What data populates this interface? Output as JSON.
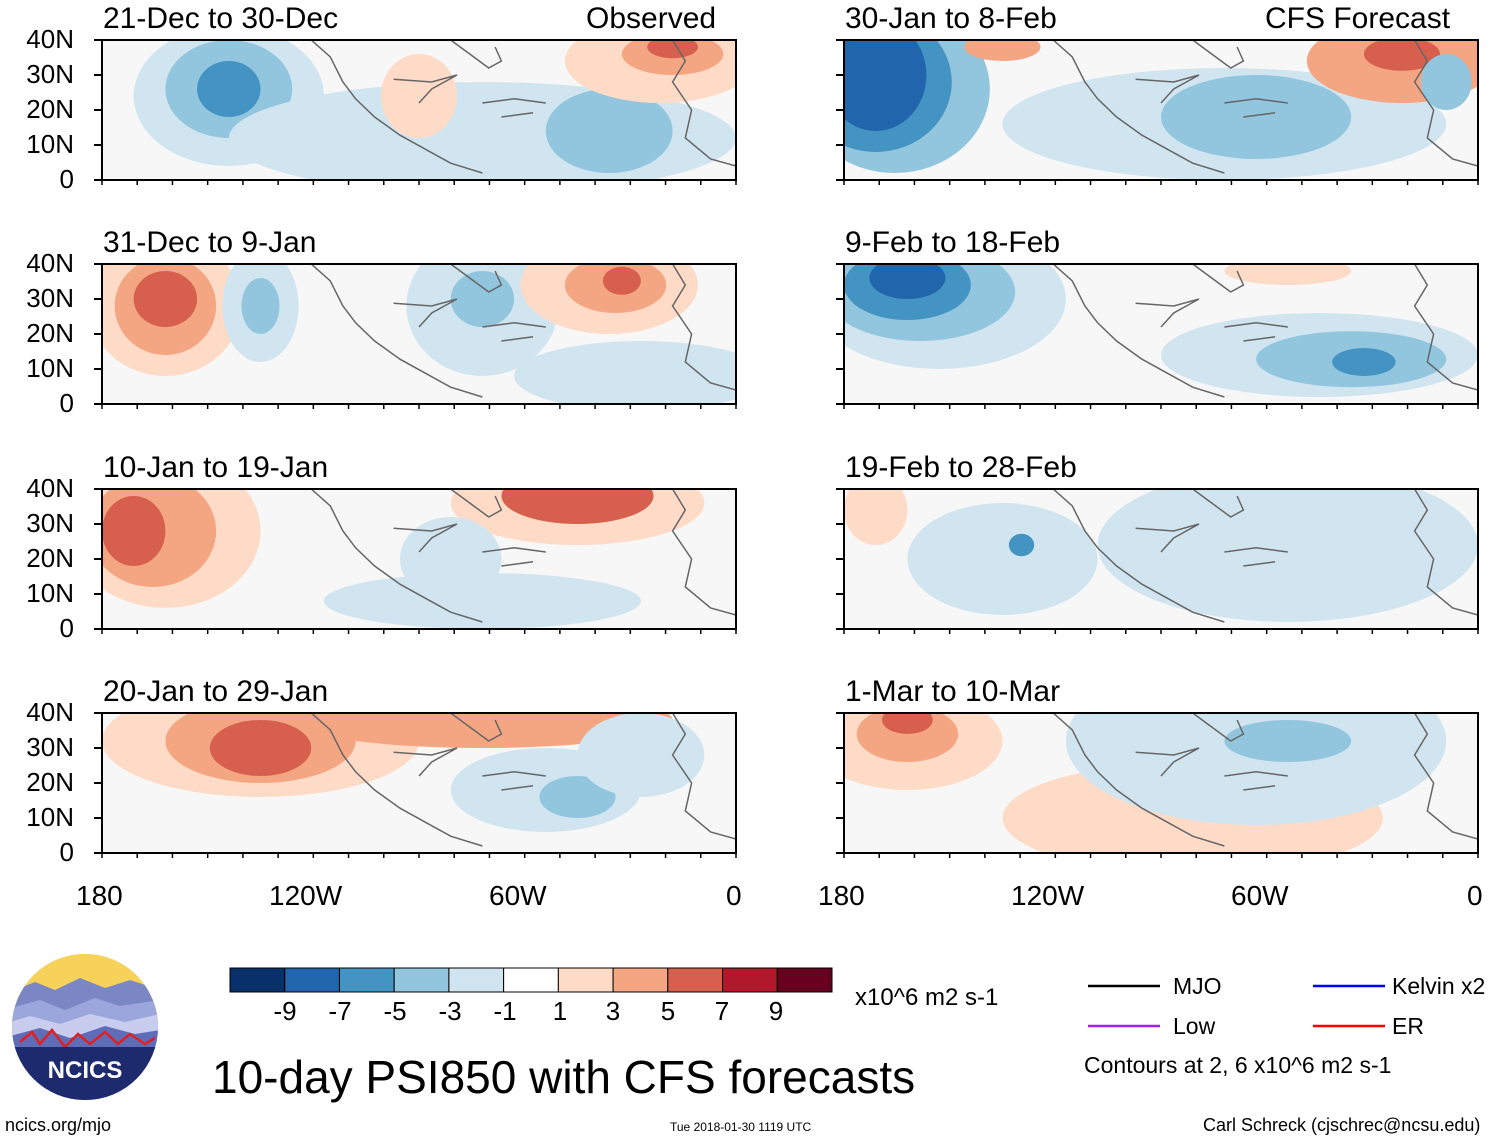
{
  "title": "10-day PSI850 with CFS forecasts",
  "footer": {
    "url": "ncics.org/mjo",
    "timestamp": "Tue 2018-01-30 1119 UTC",
    "credit": "Carl Schreck (cjschrec@ncsu.edu)"
  },
  "logo": {
    "text": "NCICS"
  },
  "left_column_label": "Observed",
  "right_column_label": "CFS Forecast",
  "lat_labels": [
    "40N",
    "30N",
    "20N",
    "10N",
    "0"
  ],
  "lon_labels": [
    "180",
    "120W",
    "60W",
    "0"
  ],
  "panels": [
    {
      "period": "21-Dec to 30-Dec",
      "column": "left",
      "row": 0
    },
    {
      "period": "31-Dec to 9-Jan",
      "column": "left",
      "row": 1
    },
    {
      "period": "10-Jan to 19-Jan",
      "column": "left",
      "row": 2
    },
    {
      "period": "20-Jan to 29-Jan",
      "column": "left",
      "row": 3
    },
    {
      "period": "30-Jan to 8-Feb",
      "column": "right",
      "row": 0
    },
    {
      "period": "9-Feb to 18-Feb",
      "column": "right",
      "row": 1
    },
    {
      "period": "19-Feb to 28-Feb",
      "column": "right",
      "row": 2
    },
    {
      "period": "1-Mar to 10-Mar",
      "column": "right",
      "row": 3
    }
  ],
  "colorbar": {
    "ticks": [
      "-9",
      "-7",
      "-5",
      "-3",
      "-1",
      "1",
      "3",
      "5",
      "7",
      "9"
    ],
    "colors": [
      "#08306b",
      "#2166ac",
      "#4393c3",
      "#92c5de",
      "#d1e5f0",
      "#ffffff",
      "#fddbc7",
      "#f4a582",
      "#d6604d",
      "#b2182b",
      "#67001f"
    ],
    "units": "x10^6 m2 s-1"
  },
  "legend": {
    "items": [
      {
        "label": "MJO",
        "color": "#000000"
      },
      {
        "label": "Kelvin x2",
        "color": "#0000ff"
      },
      {
        "label": "Low",
        "color": "#a020f0"
      },
      {
        "label": "ER",
        "color": "#ff0000"
      }
    ],
    "note": "Contours at 2, 6 x10^6 m2 s-1"
  }
}
